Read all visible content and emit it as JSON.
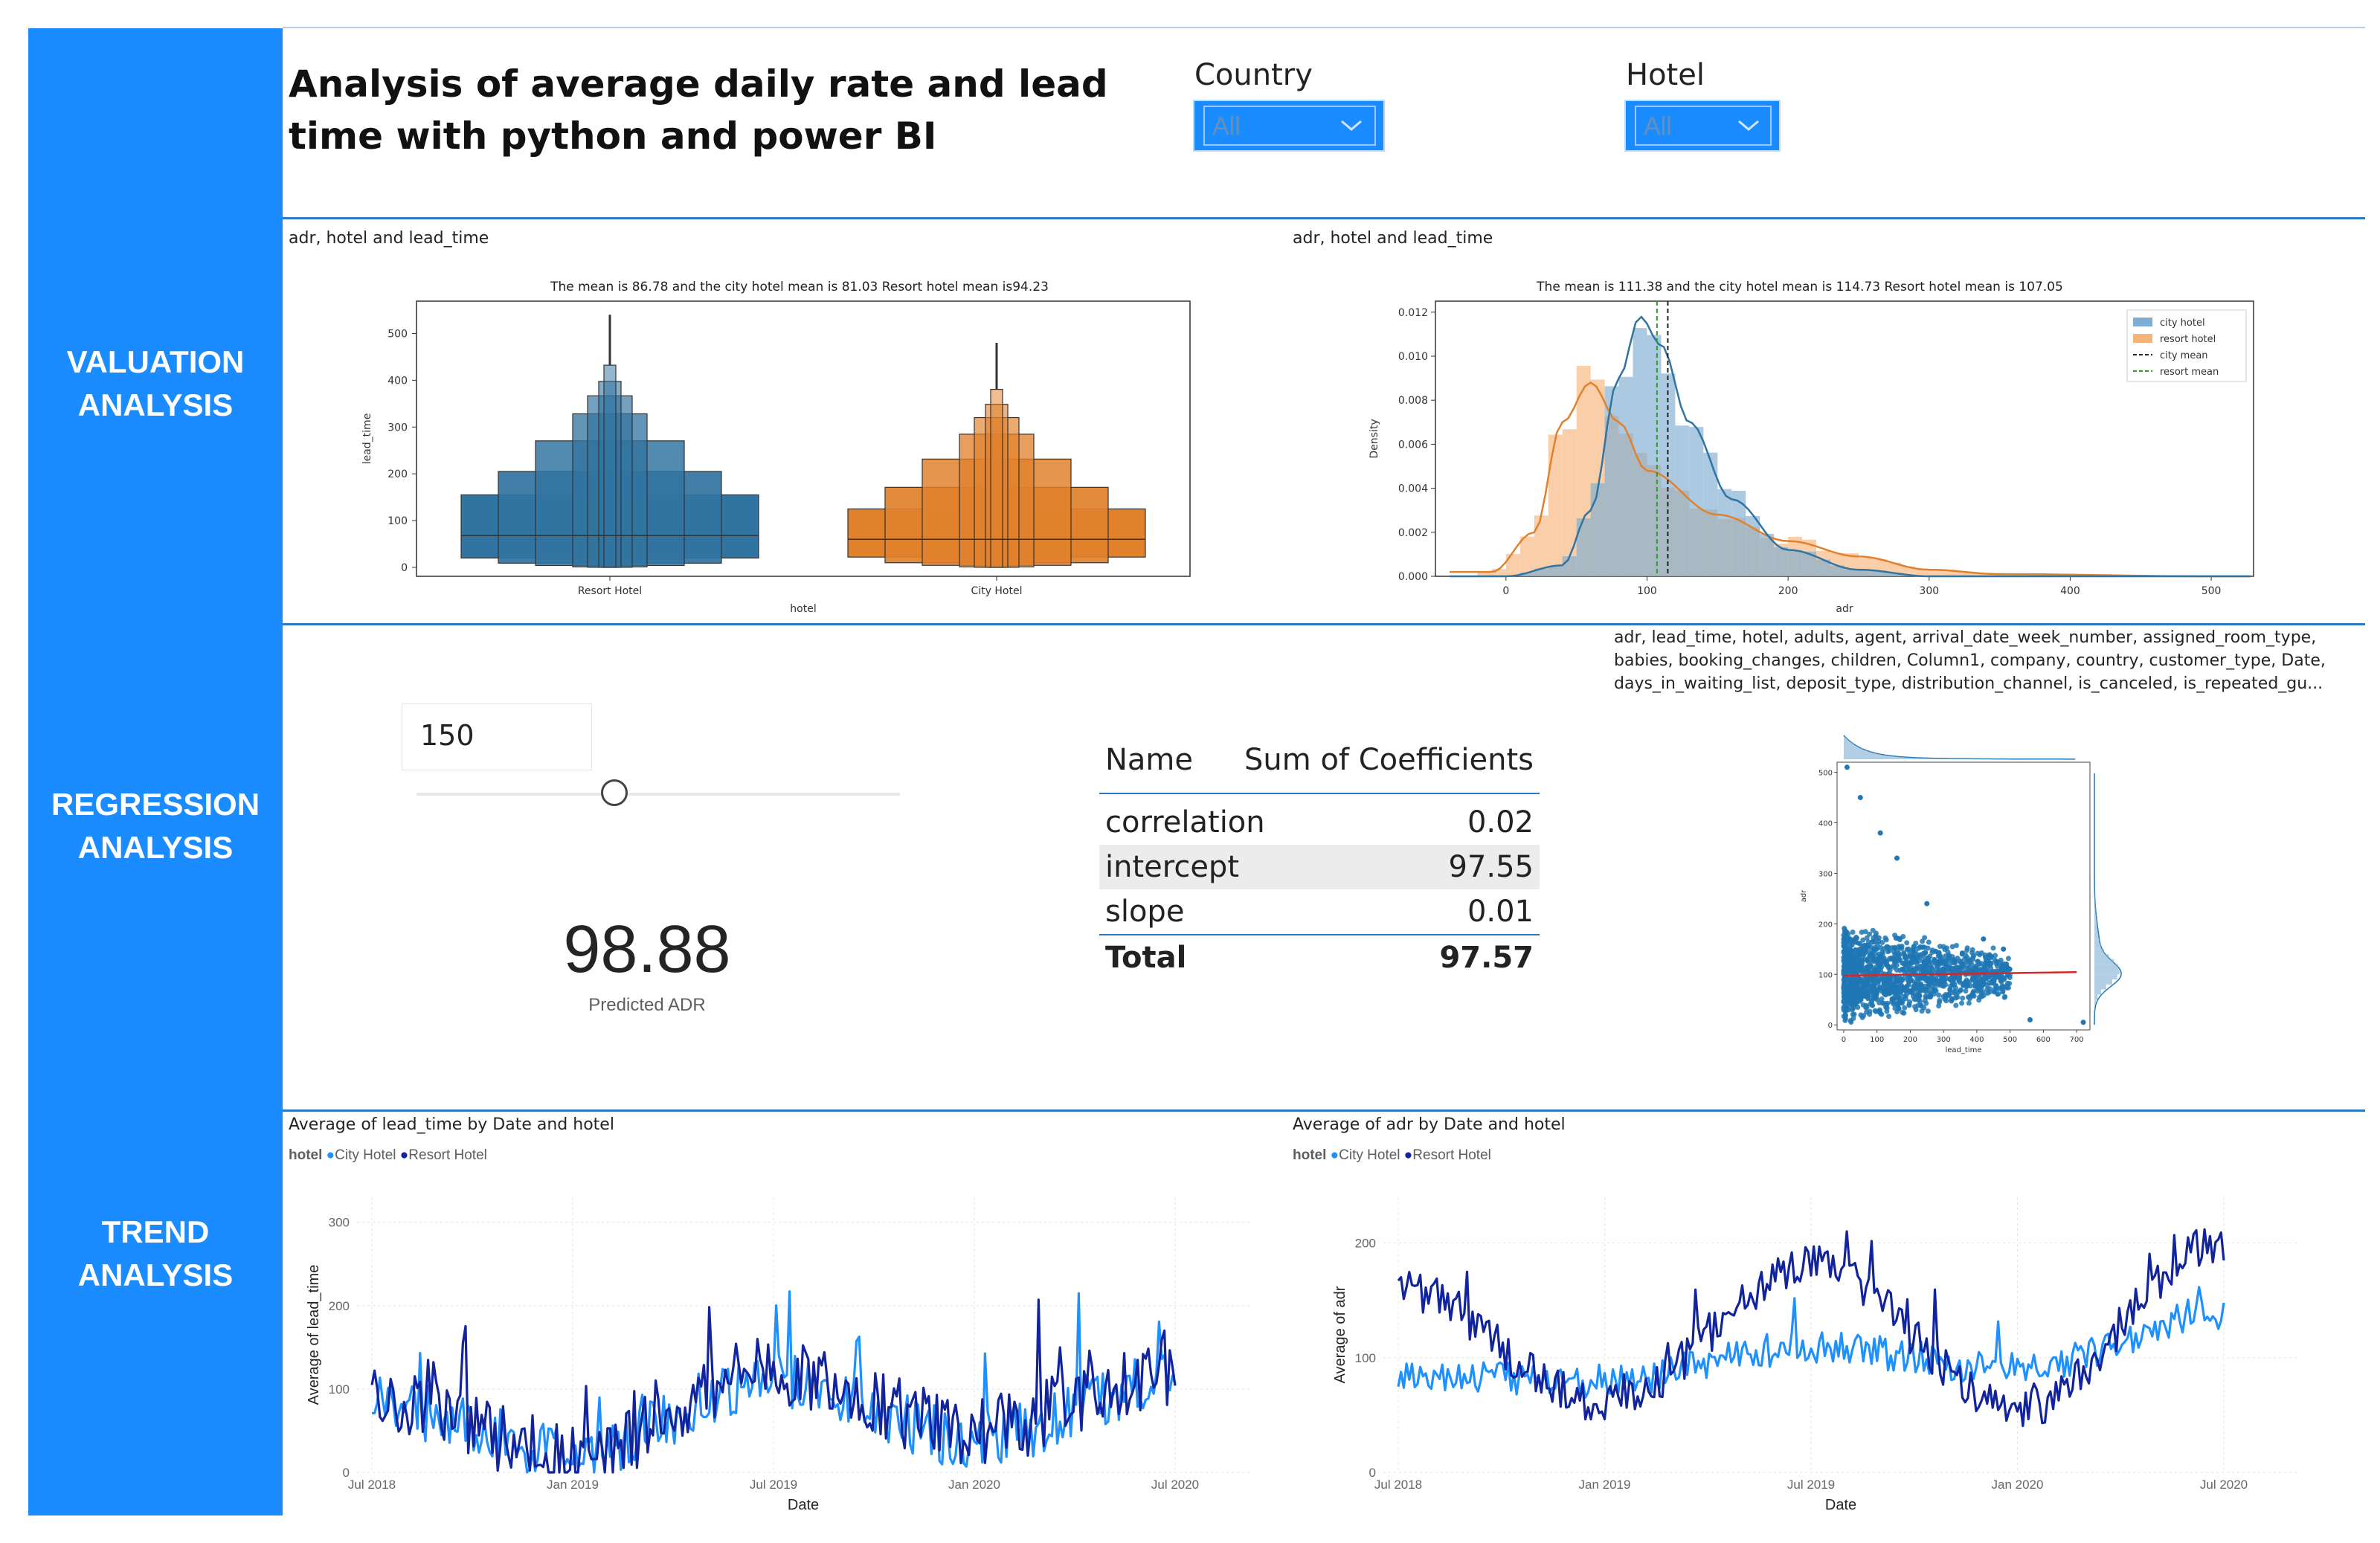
{
  "sidebar": {
    "sections": [
      "VALUATION\nANALYSIS",
      "REGRESSION\nANALYSIS",
      "TREND\nANALYSIS"
    ],
    "valuation_line1": "VALUATION",
    "valuation_line2": "ANALYSIS",
    "regression_line1": "REGRESSION",
    "regression_line2": "ANALYSIS",
    "trend_line1": "TREND",
    "trend_line2": "ANALYSIS"
  },
  "header": {
    "title_line1": "Analysis of average daily rate and lead",
    "title_line2": "time with python and power BI"
  },
  "slicers": {
    "country": {
      "label": "Country",
      "value": "All"
    },
    "hotel": {
      "label": "Hotel",
      "value": "All"
    }
  },
  "colors": {
    "accent": "#1a8cff",
    "divider": "#2b79c2",
    "city": "#1e90ff",
    "resort": "#12239e",
    "box_blue": "#3274a1",
    "box_orange": "#e1812c"
  },
  "valuation": {
    "boxplot": {
      "visual_title": "adr, hotel and lead_time",
      "subtitle": "The mean is 86.78 and the city hotel mean is 81.03 Resort hotel mean is94.23",
      "xlabel": "hotel",
      "ylabel": "lead_time",
      "categories": [
        "Resort Hotel",
        "City Hotel"
      ],
      "yticks": [
        "0",
        "100",
        "200",
        "300",
        "400",
        "500"
      ]
    },
    "density": {
      "visual_title": "adr, hotel and lead_time",
      "subtitle": "The mean is 111.38 and the city hotel mean is 114.73 Resort hotel mean is 107.05",
      "xlabel": "adr",
      "ylabel": "Density",
      "xticks": [
        "0",
        "100",
        "200",
        "300",
        "400",
        "500"
      ],
      "yticks": [
        "0.000",
        "0.002",
        "0.004",
        "0.006",
        "0.008",
        "0.010",
        "0.012"
      ],
      "legend": [
        "city hotel",
        "resort hotel",
        "city mean",
        "resort mean"
      ]
    }
  },
  "regression": {
    "slider_value": "150",
    "predicted_value": "98.88",
    "predicted_label": "Predicted ADR",
    "table": {
      "headers": [
        "Name",
        "Sum of Coefficients"
      ],
      "rows": [
        {
          "name": "correlation",
          "value": "0.02"
        },
        {
          "name": "intercept",
          "value": "97.55"
        },
        {
          "name": "slope",
          "value": "0.01"
        }
      ],
      "total": {
        "name": "Total",
        "value": "97.57"
      }
    },
    "jointplot": {
      "visual_title_line1": "adr, lead_time, hotel, adults, agent, arrival_date_week_number, assigned_room_type,",
      "visual_title_line2": "babies, booking_changes, children, Column1, company, country, customer_type, Date,",
      "visual_title_line3": "days_in_waiting_list, deposit_type, distribution_channel, is_canceled, is_repeated_gu...",
      "xlabel": "lead_time",
      "ylabel": "adr",
      "xticks": [
        "0",
        "100",
        "200",
        "300",
        "400",
        "500",
        "600",
        "700"
      ],
      "yticks": [
        "0",
        "100",
        "200",
        "300",
        "400",
        "500"
      ]
    }
  },
  "trend": {
    "lead_time": {
      "visual_title": "Average of lead_time by Date and hotel",
      "legend_title": "hotel",
      "legend": [
        "City Hotel",
        "Resort Hotel"
      ],
      "xlabel": "Date",
      "ylabel": "Average of lead_time",
      "xticks": [
        "Jul 2018",
        "Jan 2019",
        "Jul 2019",
        "Jan 2020",
        "Jul 2020"
      ],
      "yticks": [
        "0",
        "100",
        "200",
        "300"
      ]
    },
    "adr": {
      "visual_title": "Average of adr by Date and hotel",
      "legend_title": "hotel",
      "legend": [
        "City Hotel",
        "Resort Hotel"
      ],
      "xlabel": "Date",
      "ylabel": "Average of adr",
      "xticks": [
        "Jul 2018",
        "Jan 2019",
        "Jul 2019",
        "Jan 2020",
        "Jul 2020"
      ],
      "yticks": [
        "0",
        "100",
        "200"
      ]
    }
  },
  "chart_data": [
    {
      "type": "box",
      "title": "The mean is 86.78 and the city hotel mean is 81.03 Resort hotel mean is94.23",
      "xlabel": "hotel",
      "ylabel": "lead_time",
      "ylim": [
        0,
        550
      ],
      "categories": [
        "Resort Hotel",
        "City Hotel"
      ],
      "series": [
        {
          "name": "Resort Hotel",
          "median": 68,
          "q1": 20,
          "q3": 155,
          "max": 540
        },
        {
          "name": "City Hotel",
          "median": 60,
          "q1": 22,
          "q3": 125,
          "max": 480
        }
      ]
    },
    {
      "type": "area",
      "title": "The mean is 111.38 and the city hotel mean is 114.73 Resort hotel mean is 107.05",
      "xlabel": "adr",
      "ylabel": "Density",
      "xlim": [
        -50,
        530
      ],
      "ylim": [
        0,
        0.0125
      ],
      "series": [
        {
          "name": "city hotel",
          "x": [
            0,
            40,
            60,
            80,
            95,
            110,
            130,
            160,
            200,
            250,
            300
          ],
          "y": [
            0.0,
            0.0005,
            0.003,
            0.009,
            0.0118,
            0.0105,
            0.007,
            0.0035,
            0.0012,
            0.0003,
            0.0
          ]
        },
        {
          "name": "resort hotel",
          "x": [
            -10,
            20,
            40,
            60,
            80,
            100,
            150,
            200,
            250,
            300,
            350,
            500
          ],
          "y": [
            0.0002,
            0.002,
            0.007,
            0.0088,
            0.007,
            0.0048,
            0.0028,
            0.0016,
            0.0009,
            0.0003,
            0.0001,
            0.0
          ]
        },
        {
          "name": "city mean",
          "x": [
            114.73
          ],
          "y": [
            0.012
          ]
        },
        {
          "name": "resort mean",
          "x": [
            107.05
          ],
          "y": [
            0.012
          ]
        }
      ]
    },
    {
      "type": "scatter",
      "xlabel": "lead_time",
      "ylabel": "adr",
      "xlim": [
        -20,
        740
      ],
      "ylim": [
        -10,
        520
      ],
      "regression": {
        "intercept": 97.55,
        "slope": 0.01
      }
    },
    {
      "type": "line",
      "title": "Average of lead_time by Date and hotel",
      "xlabel": "Date",
      "ylabel": "Average of lead_time",
      "ylim": [
        0,
        330
      ],
      "x": [
        "Jul 2018",
        "Jan 2019",
        "Jul 2019",
        "Jan 2020",
        "Jul 2020"
      ],
      "series": [
        {
          "name": "City Hotel",
          "values": [
            80,
            25,
            110,
            40,
            110
          ]
        },
        {
          "name": "Resort Hotel",
          "values": [
            90,
            20,
            120,
            50,
            120
          ]
        }
      ]
    },
    {
      "type": "line",
      "title": "Average of adr by Date and hotel",
      "xlabel": "Date",
      "ylabel": "Average of adr",
      "ylim": [
        0,
        240
      ],
      "x": [
        "Jul 2018",
        "Jan 2019",
        "Jul 2019",
        "Jan 2020",
        "Jul 2020"
      ],
      "series": [
        {
          "name": "City Hotel",
          "values": [
            85,
            80,
            110,
            90,
            140
          ]
        },
        {
          "name": "Resort Hotel",
          "values": [
            160,
            60,
            180,
            55,
            200
          ]
        }
      ]
    }
  ]
}
